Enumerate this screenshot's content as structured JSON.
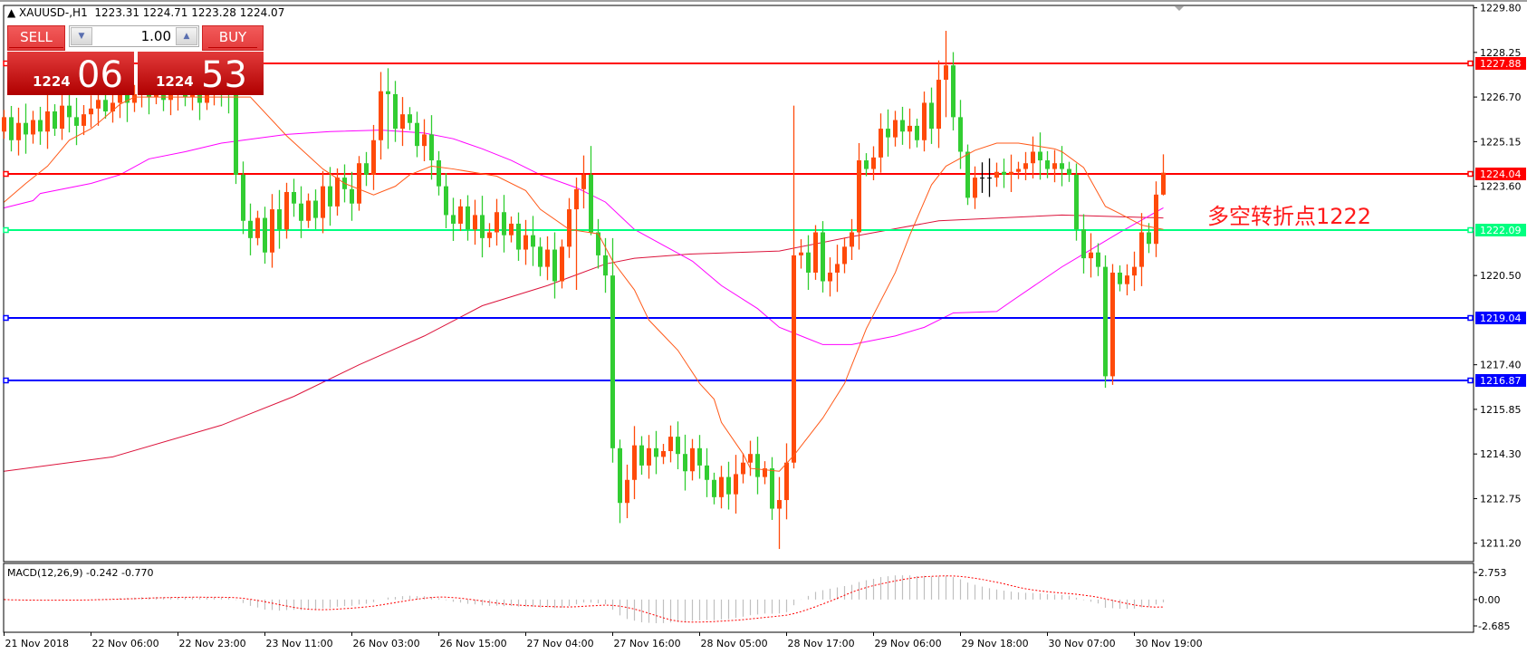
{
  "header": {
    "symbol": "XAUUSD-,H1",
    "open": "1223.31",
    "high": "1224.71",
    "low": "1223.28",
    "close": "1224.07"
  },
  "trade_panel": {
    "sell_label": "SELL",
    "buy_label": "BUY",
    "lot": "1.00",
    "sell_price_prefix": "1224",
    "sell_price_pips": "06",
    "buy_price_prefix": "1224",
    "buy_price_pips": "53"
  },
  "annotation": "多空转折点1222",
  "macd_label": "MACD(12,26,9) -0.242 -0.770",
  "colors": {
    "up": "#ff4a0a",
    "down": "#32cd32",
    "ma_fast": "#ff5a1a",
    "ma_mid": "#ff00ff",
    "ma_slow": "#dc143c",
    "macd_hist": "#c0c0c0",
    "macd_signal": "#ff0000"
  },
  "chart_data": {
    "type": "candlestick",
    "timeframe": "H1",
    "ylim": [
      1211.2,
      1229.8
    ],
    "y_ticks": [
      "1229.80",
      "1228.25",
      "1226.70",
      "1225.15",
      "1223.60",
      "1220.50",
      "1217.40",
      "1215.85",
      "1214.30",
      "1212.75",
      "1211.20"
    ],
    "x_ticks": [
      {
        "bar": 0,
        "label": "21 Nov 2018"
      },
      {
        "bar": 12,
        "label": "22 Nov 06:00"
      },
      {
        "bar": 24,
        "label": "22 Nov 23:00"
      },
      {
        "bar": 36,
        "label": "23 Nov 11:00"
      },
      {
        "bar": 48,
        "label": "26 Nov 03:00"
      },
      {
        "bar": 60,
        "label": "26 Nov 15:00"
      },
      {
        "bar": 72,
        "label": "27 Nov 04:00"
      },
      {
        "bar": 84,
        "label": "27 Nov 16:00"
      },
      {
        "bar": 96,
        "label": "28 Nov 05:00"
      },
      {
        "bar": 108,
        "label": "28 Nov 17:00"
      },
      {
        "bar": 120,
        "label": "29 Nov 06:00"
      },
      {
        "bar": 132,
        "label": "29 Nov 18:00"
      },
      {
        "bar": 144,
        "label": "30 Nov 07:00"
      },
      {
        "bar": 156,
        "label": "30 Nov 19:00"
      }
    ],
    "first_open": 1225.5,
    "closes": [
      1226.0,
      1225.2,
      1225.8,
      1225.4,
      1225.9,
      1225.5,
      1226.2,
      1225.6,
      1226.4,
      1226.0,
      1225.7,
      1226.1,
      1226.3,
      1226.6,
      1226.2,
      1226.5,
      1226.9,
      1226.5,
      1226.8,
      1227.1,
      1226.7,
      1227.0,
      1226.6,
      1226.9,
      1227.0,
      1226.7,
      1226.9,
      1226.5,
      1226.8,
      1227.2,
      1226.9,
      1226.8,
      1224.0,
      1222.4,
      1221.8,
      1222.5,
      1221.3,
      1222.8,
      1222.1,
      1223.4,
      1223.0,
      1222.4,
      1223.1,
      1222.5,
      1223.6,
      1222.9,
      1223.9,
      1223.5,
      1223.0,
      1224.4,
      1224.0,
      1225.2,
      1226.9,
      1226.8,
      1225.6,
      1226.1,
      1225.8,
      1225.0,
      1225.4,
      1224.5,
      1223.6,
      1222.6,
      1222.3,
      1222.9,
      1222.1,
      1222.6,
      1221.8,
      1222.0,
      1222.7,
      1221.9,
      1222.3,
      1221.4,
      1221.9,
      1221.5,
      1220.8,
      1221.4,
      1220.3,
      1221.5,
      1222.8,
      1223.5,
      1224.0,
      1222.0,
      1221.2,
      1220.5,
      1214.5,
      1212.6,
      1213.4,
      1214.6,
      1213.9,
      1214.5,
      1214.2,
      1214.4,
      1214.9,
      1214.3,
      1213.7,
      1214.5,
      1213.9,
      1213.4,
      1212.8,
      1213.5,
      1212.9,
      1213.6,
      1214.0,
      1214.3,
      1213.5,
      1213.8,
      1212.4,
      1212.7,
      1214.0,
      1221.2,
      1221.3,
      1220.6,
      1222.0,
      1220.3,
      1220.6,
      1220.9,
      1221.5,
      1222.0,
      1224.5,
      1224.2,
      1224.6,
      1225.6,
      1225.3,
      1225.9,
      1225.5,
      1225.7,
      1225.2,
      1226.5,
      1225.6,
      1227.3,
      1227.8,
      1226.0,
      1224.8,
      1223.2,
      1223.9,
      1223.9,
      1223.9,
      1224.1,
      1224.0,
      1224.1,
      1224.2,
      1224.4,
      1224.8,
      1224.5,
      1224.2,
      1224.4,
      1224.2,
      1224.0,
      1222.1,
      1221.1,
      1221.3,
      1220.8,
      1217.0,
      1220.6,
      1220.2,
      1220.5,
      1220.8,
      1222.0,
      1221.6,
      1223.31,
      1224.07
    ],
    "wick_extremes": {
      "53": [
        1227.7,
        1224.9
      ],
      "79": [
        1223.9,
        1220.0
      ],
      "81": [
        1225.0,
        1221.9
      ],
      "84": [
        1221.8,
        1214.0
      ],
      "85": [
        1214.8,
        1211.9
      ],
      "107": [
        1213.5,
        1211.0
      ],
      "109": [
        1226.4,
        1213.8
      ],
      "130": [
        1229.0,
        1226.0
      ],
      "152": [
        1221.2,
        1216.6
      ],
      "153": [
        1220.9,
        1216.7
      ],
      "160": [
        1224.71,
        1223.28
      ]
    },
    "ma_fast": [
      [
        0,
        1223.05
      ],
      [
        3,
        1223.7
      ],
      [
        6,
        1224.3
      ],
      [
        9,
        1225.2
      ],
      [
        12,
        1225.6
      ],
      [
        13,
        1225.8
      ],
      [
        16,
        1226.45
      ],
      [
        18,
        1226.7
      ],
      [
        34,
        1226.7
      ],
      [
        39,
        1225.35
      ],
      [
        44,
        1224.2
      ],
      [
        47,
        1223.7
      ],
      [
        51,
        1223.3
      ],
      [
        54,
        1223.6
      ],
      [
        56,
        1224.0
      ],
      [
        59,
        1224.3
      ],
      [
        62,
        1224.2
      ],
      [
        68,
        1223.95
      ],
      [
        72,
        1223.45
      ],
      [
        74,
        1222.8
      ],
      [
        78,
        1222.1
      ],
      [
        82,
        1221.95
      ],
      [
        84,
        1221.0
      ],
      [
        87,
        1220.0
      ],
      [
        89,
        1218.95
      ],
      [
        93,
        1217.9
      ],
      [
        96,
        1216.75
      ],
      [
        98,
        1216.2
      ],
      [
        99,
        1215.4
      ],
      [
        102,
        1214.3
      ],
      [
        103,
        1213.8
      ],
      [
        107,
        1213.7
      ],
      [
        109,
        1214.25
      ],
      [
        113,
        1215.55
      ],
      [
        116,
        1216.75
      ],
      [
        119,
        1218.65
      ],
      [
        123,
        1220.6
      ],
      [
        125,
        1221.9
      ],
      [
        128,
        1223.65
      ],
      [
        130,
        1224.3
      ],
      [
        134,
        1224.85
      ],
      [
        137,
        1225.1
      ],
      [
        140,
        1225.1
      ],
      [
        145,
        1224.9
      ],
      [
        146,
        1224.8
      ],
      [
        149,
        1224.25
      ],
      [
        152,
        1222.9
      ],
      [
        154,
        1222.65
      ],
      [
        157,
        1222.25
      ],
      [
        160,
        1222.1
      ]
    ],
    "ma_mid": [
      [
        0,
        1222.85
      ],
      [
        4,
        1223.1
      ],
      [
        5,
        1223.35
      ],
      [
        12,
        1223.7
      ],
      [
        16,
        1224.0
      ],
      [
        20,
        1224.55
      ],
      [
        25,
        1224.8
      ],
      [
        30,
        1225.1
      ],
      [
        33,
        1225.2
      ],
      [
        39,
        1225.4
      ],
      [
        45,
        1225.5
      ],
      [
        52,
        1225.55
      ],
      [
        58,
        1225.45
      ],
      [
        62,
        1225.25
      ],
      [
        66,
        1224.9
      ],
      [
        70,
        1224.5
      ],
      [
        74,
        1224.0
      ],
      [
        79,
        1223.55
      ],
      [
        83,
        1223.05
      ],
      [
        87,
        1222.1
      ],
      [
        91,
        1221.55
      ],
      [
        95,
        1221.0
      ],
      [
        99,
        1220.15
      ],
      [
        104,
        1219.35
      ],
      [
        107,
        1218.7
      ],
      [
        110,
        1218.4
      ],
      [
        113,
        1218.1
      ],
      [
        117,
        1218.1
      ],
      [
        123,
        1218.4
      ],
      [
        127,
        1218.7
      ],
      [
        131,
        1219.2
      ],
      [
        137,
        1219.25
      ],
      [
        139,
        1219.6
      ],
      [
        146,
        1220.8
      ],
      [
        150,
        1221.4
      ],
      [
        154,
        1222.0
      ],
      [
        160,
        1222.85
      ]
    ],
    "ma_slow": [
      [
        0,
        1213.7
      ],
      [
        15,
        1214.2
      ],
      [
        30,
        1215.3
      ],
      [
        40,
        1216.3
      ],
      [
        49,
        1217.4
      ],
      [
        58,
        1218.4
      ],
      [
        66,
        1219.45
      ],
      [
        75,
        1220.15
      ],
      [
        83,
        1220.9
      ],
      [
        87,
        1221.1
      ],
      [
        95,
        1221.25
      ],
      [
        107,
        1221.35
      ],
      [
        117,
        1221.85
      ],
      [
        129,
        1222.4
      ],
      [
        146,
        1222.6
      ],
      [
        160,
        1222.5
      ]
    ],
    "horizontal_lines": [
      {
        "price": "1227.88",
        "color": "#ff0000"
      },
      {
        "price": "1224.04",
        "color": "#ff0000"
      },
      {
        "price": "1222.09",
        "color": "#00ff80"
      },
      {
        "price": "1219.04",
        "color": "#0000ff"
      },
      {
        "price": "1216.87",
        "color": "#0000ff"
      }
    ],
    "macd": {
      "params": "12,26,9",
      "main": -0.242,
      "signal": -0.77,
      "ylim": [
        -2.685,
        2.753
      ],
      "y_ticks": [
        "2.753",
        "0.00",
        "-2.685"
      ]
    }
  }
}
